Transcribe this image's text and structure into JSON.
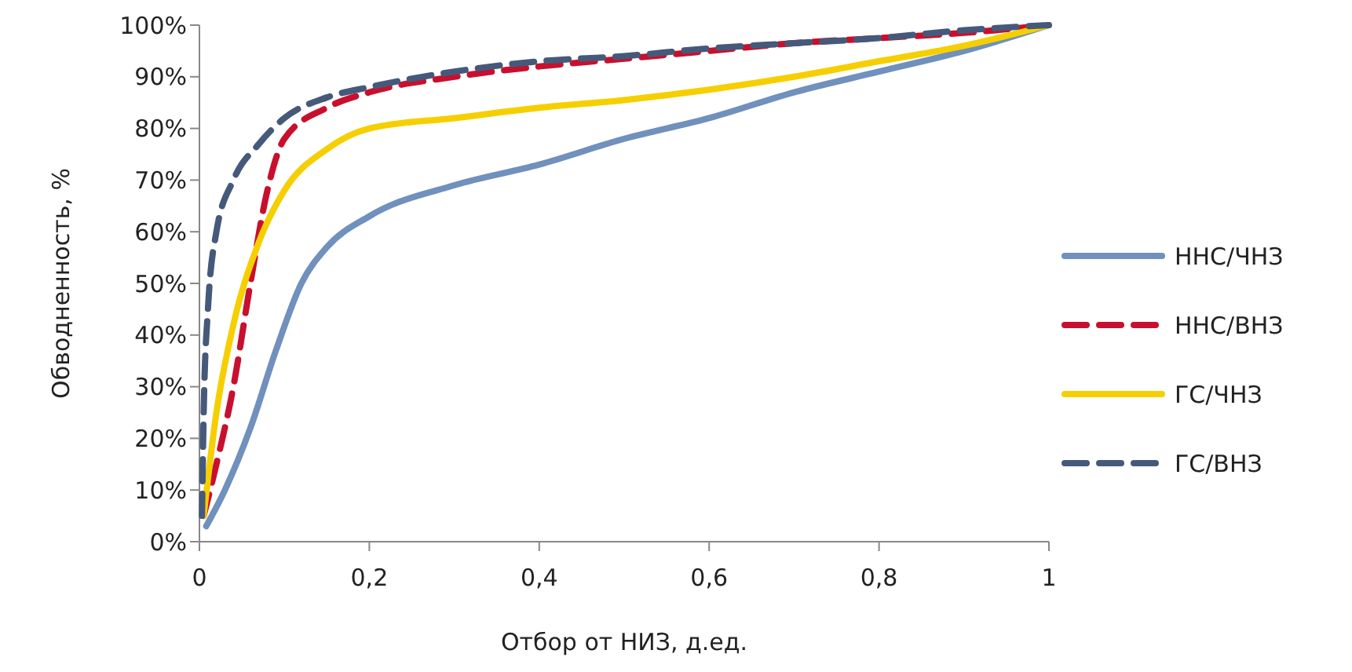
{
  "chart_data": {
    "type": "line",
    "xlabel": "Отбор от НИЗ, д.ед.",
    "ylabel": "Обводненность, %",
    "xlim": [
      0,
      1
    ],
    "ylim": [
      0,
      100
    ],
    "xticks": [
      0,
      {
        "value": 0.2,
        "label": "0,2"
      },
      {
        "value": 0.4,
        "label": "0,4"
      },
      {
        "value": 0.6,
        "label": "0,6"
      },
      {
        "value": 0.8,
        "label": "0,8"
      },
      1
    ],
    "yticks": [
      {
        "value": 0,
        "label": "0%"
      },
      {
        "value": 10,
        "label": "10%"
      },
      {
        "value": 20,
        "label": "20%"
      },
      {
        "value": 30,
        "label": "30%"
      },
      {
        "value": 40,
        "label": "40%"
      },
      {
        "value": 50,
        "label": "50%"
      },
      {
        "value": 60,
        "label": "60%"
      },
      {
        "value": 70,
        "label": "70%"
      },
      {
        "value": 80,
        "label": "80%"
      },
      {
        "value": 90,
        "label": "90%"
      },
      {
        "value": 100,
        "label": "100%"
      }
    ],
    "grid": false,
    "legend": "right",
    "series": [
      {
        "name": "ННС/ЧНЗ",
        "color": "#7090bd",
        "line_style": "solid",
        "x": [
          0.008,
          0.03,
          0.06,
          0.09,
          0.12,
          0.15,
          0.2,
          0.3,
          0.4,
          0.5,
          0.6,
          0.7,
          0.8,
          0.9,
          1
        ],
        "values": [
          3,
          10,
          22,
          37,
          50,
          57,
          63,
          69,
          73,
          78,
          82,
          87,
          91,
          95,
          100
        ]
      },
      {
        "name": "ННС/ВНЗ",
        "color": "#c8102e",
        "line_style": "dashed",
        "x": [
          0.005,
          0.02,
          0.04,
          0.06,
          0.08,
          0.1,
          0.15,
          0.2,
          0.3,
          0.4,
          0.5,
          0.6,
          0.7,
          0.8,
          0.9,
          1
        ],
        "values": [
          5,
          15,
          30,
          50,
          68,
          78,
          84,
          87,
          90,
          92,
          93.5,
          95,
          96.5,
          97.5,
          98.5,
          100
        ]
      },
      {
        "name": "ГС/ЧНЗ",
        "color": "#f5cf00",
        "line_style": "solid",
        "x": [
          0.005,
          0.02,
          0.04,
          0.07,
          0.1,
          0.15,
          0.2,
          0.3,
          0.4,
          0.5,
          0.6,
          0.7,
          0.8,
          0.9,
          1
        ],
        "values": [
          5,
          25,
          42,
          58,
          68,
          76,
          80,
          82,
          84,
          85.5,
          87.5,
          90,
          93,
          96,
          100
        ]
      },
      {
        "name": "ГС/ВНЗ",
        "color": "#45597a",
        "line_style": "dashed",
        "x": [
          0.003,
          0.005,
          0.01,
          0.02,
          0.04,
          0.07,
          0.1,
          0.15,
          0.2,
          0.3,
          0.4,
          0.5,
          0.6,
          0.7,
          0.8,
          0.9,
          1
        ],
        "values": [
          5,
          25,
          45,
          60,
          70,
          77,
          82,
          86,
          88,
          91,
          93,
          94,
          95.5,
          96.5,
          97.5,
          99,
          100
        ]
      }
    ]
  }
}
